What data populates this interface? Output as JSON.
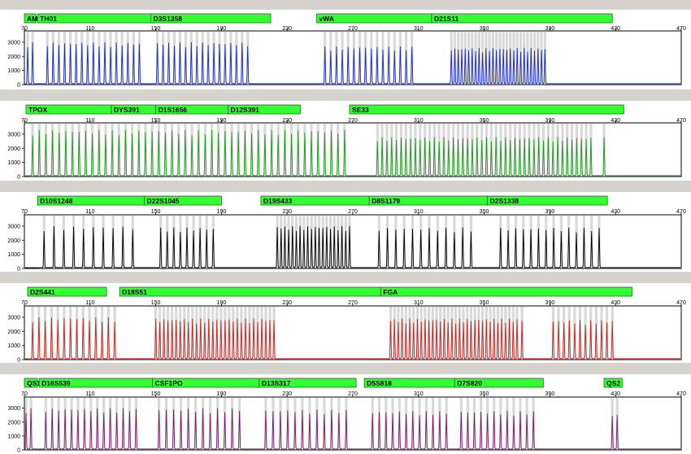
{
  "chart_data": [
    {
      "type": "line",
      "x_ticks": [
        70,
        110,
        150,
        190,
        230,
        270,
        310,
        350,
        390,
        430,
        470
      ],
      "y_ticks": [
        0,
        1000,
        2000,
        3000
      ],
      "xlim": [
        70,
        470
      ],
      "ylim": [
        0,
        3800
      ],
      "color": "#1a2bc8",
      "markers": [
        {
          "label": "AM",
          "start": 70,
          "end": 77
        },
        {
          "label": "TH01",
          "start": 78,
          "end": 148
        },
        {
          "label": "D3S1358",
          "start": 147,
          "end": 220
        },
        {
          "label": "vWA",
          "start": 248,
          "end": 318
        },
        {
          "label": "D21S11",
          "start": 318,
          "end": 428
        }
      ],
      "peak_groups": [
        {
          "start": 72,
          "end": 75,
          "count": 2,
          "height": 3000
        },
        {
          "start": 84,
          "end": 140,
          "count": 17,
          "height": 3000
        },
        {
          "start": 151,
          "end": 206,
          "count": 17,
          "height": 3000
        },
        {
          "start": 253,
          "end": 306,
          "count": 16,
          "height": 2700
        },
        {
          "start": 330,
          "end": 387,
          "count": 28,
          "height": 2600
        }
      ],
      "bins": [
        {
          "start": 70,
          "end": 76
        },
        {
          "start": 78,
          "end": 146
        },
        {
          "start": 147,
          "end": 214
        },
        {
          "start": 252,
          "end": 316
        },
        {
          "start": 322,
          "end": 396
        }
      ]
    },
    {
      "type": "line",
      "x_ticks": [
        70,
        110,
        150,
        190,
        230,
        270,
        310,
        350,
        390,
        430,
        470
      ],
      "y_ticks": [
        0,
        1000,
        2000,
        3000
      ],
      "xlim": [
        70,
        470
      ],
      "ylim": [
        0,
        3800
      ],
      "color": "#1f9a1f",
      "markers": [
        {
          "label": "TPOX",
          "start": 71,
          "end": 123
        },
        {
          "label": "DYS391",
          "start": 123,
          "end": 150
        },
        {
          "label": "D1S1656",
          "start": 150,
          "end": 194
        },
        {
          "label": "D12S391",
          "start": 194,
          "end": 238
        },
        {
          "label": "SE33",
          "start": 268,
          "end": 435
        }
      ],
      "peak_groups": [
        {
          "start": 75,
          "end": 265,
          "count": 48,
          "height": 3300
        },
        {
          "start": 285,
          "end": 415,
          "count": 46,
          "height": 2800
        },
        {
          "start": 423,
          "end": 423,
          "count": 1,
          "height": 3000
        }
      ],
      "bins": [
        {
          "start": 74,
          "end": 147
        },
        {
          "start": 150,
          "end": 234
        },
        {
          "start": 268,
          "end": 424
        }
      ]
    },
    {
      "type": "line",
      "x_ticks": [
        70,
        110,
        150,
        190,
        230,
        270,
        310,
        350,
        390,
        430,
        470
      ],
      "y_ticks": [
        0,
        1000,
        2000,
        3000
      ],
      "xlim": [
        70,
        470
      ],
      "ylim": [
        0,
        3800
      ],
      "color": "#000000",
      "markers": [
        {
          "label": "D10S1248",
          "start": 78,
          "end": 143
        },
        {
          "label": "D22S1045",
          "start": 143,
          "end": 190
        },
        {
          "label": "D19S433",
          "start": 214,
          "end": 280
        },
        {
          "label": "D8S1179",
          "start": 280,
          "end": 352
        },
        {
          "label": "D2S1338",
          "start": 352,
          "end": 425
        }
      ],
      "peak_groups": [
        {
          "start": 82,
          "end": 136,
          "count": 10,
          "height": 3000
        },
        {
          "start": 153,
          "end": 185,
          "count": 9,
          "height": 2900
        },
        {
          "start": 224,
          "end": 268,
          "count": 20,
          "height": 3000
        },
        {
          "start": 286,
          "end": 342,
          "count": 12,
          "height": 2900
        },
        {
          "start": 360,
          "end": 420,
          "count": 14,
          "height": 2900
        }
      ],
      "bins": [
        {
          "start": 80,
          "end": 140
        },
        {
          "start": 150,
          "end": 188
        },
        {
          "start": 220,
          "end": 272
        },
        {
          "start": 283,
          "end": 346
        },
        {
          "start": 356,
          "end": 424
        }
      ]
    },
    {
      "type": "line",
      "x_ticks": [
        70,
        110,
        150,
        190,
        230,
        270,
        310,
        350,
        390,
        430,
        470
      ],
      "y_ticks": [
        0,
        1000,
        2000,
        3000
      ],
      "xlim": [
        70,
        470
      ],
      "ylim": [
        0,
        3800
      ],
      "color": "#c8241d",
      "markers": [
        {
          "label": "D2S441",
          "start": 72,
          "end": 120
        },
        {
          "label": "D18S51",
          "start": 128,
          "end": 287
        },
        {
          "label": "FGA",
          "start": 287,
          "end": 440
        }
      ],
      "peak_groups": [
        {
          "start": 75,
          "end": 125,
          "count": 14,
          "height": 3000
        },
        {
          "start": 150,
          "end": 222,
          "count": 30,
          "height": 2900
        },
        {
          "start": 293,
          "end": 370,
          "count": 34,
          "height": 2900
        },
        {
          "start": 373,
          "end": 373,
          "count": 1,
          "height": 2900
        },
        {
          "start": 392,
          "end": 428,
          "count": 12,
          "height": 2800
        }
      ],
      "bins": [
        {
          "start": 74,
          "end": 130
        },
        {
          "start": 148,
          "end": 226
        },
        {
          "start": 292,
          "end": 376
        },
        {
          "start": 390,
          "end": 432
        }
      ]
    },
    {
      "type": "line",
      "x_ticks": [
        70,
        110,
        150,
        190,
        230,
        270,
        310,
        350,
        390,
        430,
        470
      ],
      "y_ticks": [
        0,
        1000,
        2000,
        3000
      ],
      "xlim": [
        70,
        470
      ],
      "ylim": [
        0,
        3800
      ],
      "color": "#7d1a6b",
      "markers": [
        {
          "label": "QS1",
          "start": 70,
          "end": 78
        },
        {
          "label": "D16S539",
          "start": 79,
          "end": 148
        },
        {
          "label": "CSF1PO",
          "start": 148,
          "end": 213
        },
        {
          "label": "D13S317",
          "start": 213,
          "end": 272
        },
        {
          "label": "D5S818",
          "start": 277,
          "end": 332
        },
        {
          "label": "D7S820",
          "start": 332,
          "end": 386
        },
        {
          "label": "QS2",
          "start": 423,
          "end": 434
        }
      ],
      "peak_groups": [
        {
          "start": 71,
          "end": 74,
          "count": 2,
          "height": 3000
        },
        {
          "start": 83,
          "end": 138,
          "count": 15,
          "height": 3000
        },
        {
          "start": 152,
          "end": 201,
          "count": 12,
          "height": 3000
        },
        {
          "start": 217,
          "end": 266,
          "count": 12,
          "height": 2900
        },
        {
          "start": 282,
          "end": 327,
          "count": 12,
          "height": 2800
        },
        {
          "start": 336,
          "end": 380,
          "count": 12,
          "height": 2800
        },
        {
          "start": 428,
          "end": 431,
          "count": 2,
          "height": 2600
        }
      ],
      "bins": [
        {
          "start": 70,
          "end": 76
        },
        {
          "start": 80,
          "end": 146
        },
        {
          "start": 150,
          "end": 206
        },
        {
          "start": 216,
          "end": 270
        },
        {
          "start": 280,
          "end": 330
        },
        {
          "start": 334,
          "end": 384
        },
        {
          "start": 425,
          "end": 433
        }
      ]
    }
  ]
}
